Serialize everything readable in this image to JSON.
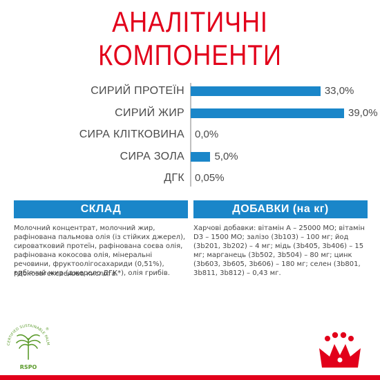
{
  "title": {
    "line1": "АНАЛІТИЧНІ",
    "line2": "КОМПОНЕНТИ"
  },
  "analysis": {
    "rows": [
      {
        "label": "СИРИЙ ПРОТЕЇН",
        "value": "33,0%",
        "num": 33.0
      },
      {
        "label": "СИРИЙ ЖИР",
        "value": "39,0%",
        "num": 39.0
      },
      {
        "label": "СИРА КЛІТКОВИНА",
        "value": "0,0%",
        "num": 0.0
      },
      {
        "label": "СИРА ЗОЛА",
        "value": "5,0%",
        "num": 5.0
      },
      {
        "label": "ДГК",
        "value": "0,05%",
        "num": 0.05
      }
    ],
    "bar_color": "#1a86c9"
  },
  "composition": {
    "header": "СКЛАД",
    "text": "Молочний концентрат, молочний жир, рафінована пальмова олія (із стійких джерел), сироватковий протеїн, рафінована соєва олія, рафінована кокосова олія, мінеральні речовини, фруктоолігосахариди (0,51%), риб'ячий жир (джерело ДГК*), олія грибів.",
    "note": "*Докозагексаєнова кислота."
  },
  "additives": {
    "header": "ДОБАВКИ (на кг)",
    "text": "Харчові добавки: вітамін А – 25000 МО; вітамін D3 – 1500 МО; залізо (3b103) – 100 мг; йод (3b201, 3b202) – 4 мг; мідь (3b405, 3b406) – 15 мг; марганець (3b502, 3b504) – 80 мг; цинк (3b603, 3b605, 3b606) – 180 мг; селен (3b801, 3b811, 3b812) – 0,43 мг."
  },
  "logos": {
    "rspo_text": "CERTIFIED SUSTAINABLE PALM OIL",
    "rspo_brand": "RSPO",
    "rspo_mark": "®",
    "rspo_color": "#5a9a2a",
    "royal_canin_color": "#e2001a"
  },
  "colors": {
    "accent": "#e2001a",
    "blue": "#1a86c9"
  }
}
